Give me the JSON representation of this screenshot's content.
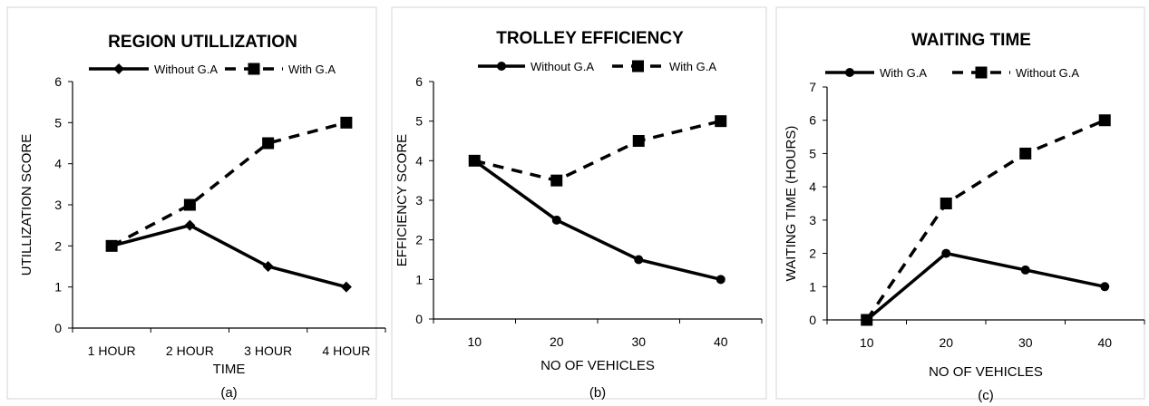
{
  "chart_data": [
    {
      "type": "line",
      "title": "REGION UTILLIZATION",
      "xlabel": "TIME",
      "ylabel": "UTILLIZATION SCORE",
      "categories": [
        "1 HOUR",
        "2 HOUR",
        "3 HOUR",
        "4 HOUR"
      ],
      "ylim": [
        0,
        6
      ],
      "yticks": [
        "0",
        "1",
        "2",
        "3",
        "4",
        "5",
        "6"
      ],
      "legend": "top",
      "series": [
        {
          "name": "Without G.A",
          "values": [
            2,
            2.5,
            1.5,
            1
          ],
          "style": "solid",
          "marker": "diamond"
        },
        {
          "name": "With G.A",
          "values": [
            2,
            3,
            4.5,
            5
          ],
          "style": "dashed",
          "marker": "square"
        }
      ],
      "sublabel": "(a)"
    },
    {
      "type": "line",
      "title": "TROLLEY EFFICIENCY",
      "xlabel": "NO OF VEHICLES",
      "ylabel": "EFFICIENCY SCORE",
      "categories": [
        "10",
        "20",
        "30",
        "40"
      ],
      "ylim": [
        0,
        6
      ],
      "yticks": [
        "0",
        "1",
        "2",
        "3",
        "4",
        "5",
        "6"
      ],
      "legend": "top",
      "series": [
        {
          "name": "Without G.A",
          "values": [
            4,
            2.5,
            1.5,
            1
          ],
          "style": "solid",
          "marker": "circle"
        },
        {
          "name": "With G.A",
          "values": [
            4,
            3.5,
            4.5,
            5
          ],
          "style": "dashed",
          "marker": "square"
        }
      ],
      "sublabel": "(b)"
    },
    {
      "type": "line",
      "title": "WAITING TIME",
      "xlabel": "NO OF VEHICLES",
      "ylabel": "WAITING TIME (HOURS)",
      "categories": [
        "10",
        "20",
        "30",
        "40"
      ],
      "ylim": [
        0,
        7
      ],
      "yticks": [
        "0",
        "1",
        "2",
        "3",
        "4",
        "5",
        "6",
        "7"
      ],
      "legend": "top",
      "series": [
        {
          "name": "With G.A",
          "values": [
            0,
            2,
            1.5,
            1
          ],
          "style": "solid",
          "marker": "circle"
        },
        {
          "name": "Without G.A",
          "values": [
            0,
            3.5,
            5,
            6
          ],
          "style": "dashed",
          "marker": "square"
        }
      ],
      "sublabel": "(c)"
    }
  ]
}
